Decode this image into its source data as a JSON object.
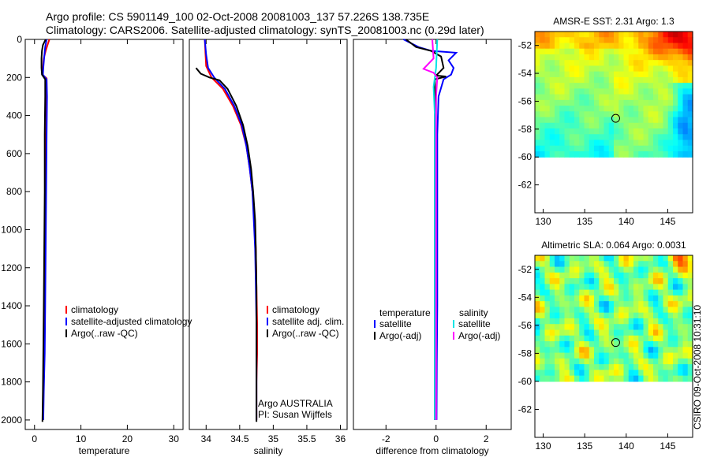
{
  "header": {
    "line1": "Argo profile: CS 5901149_100 02-Oct-2008 20081003_137 57.226S 138.735E",
    "line2": "Climatology: CARS2006. Satellite-adjusted climatology: synTS_20081003.nc (0.29d later)"
  },
  "colors": {
    "climatology": "#ff0000",
    "satellite": "#0000ff",
    "argo": "#000000",
    "satellite_salinity": "#00e5e5",
    "argo_adj_salinity": "#ff00ff"
  },
  "watermark": "CSIRO 09-Oct-2008 10:31:10",
  "chart_data": [
    {
      "type": "line",
      "id": "temperature",
      "xlabel": "temperature",
      "xlim": [
        -2,
        32
      ],
      "ylim": [
        2050,
        0
      ],
      "xticks": [
        0,
        10,
        20,
        30
      ],
      "yticks": [
        0,
        200,
        400,
        600,
        800,
        1000,
        1200,
        1400,
        1600,
        1800,
        2000
      ],
      "legend": {
        "position": "lower-left",
        "entries": [
          "climatology",
          "satellite-adjusted climatology",
          "Argo(..raw -QC)"
        ]
      },
      "series": [
        {
          "name": "climatology",
          "color": "#ff0000",
          "points": [
            [
              3.2,
              0
            ],
            [
              2.8,
              30
            ],
            [
              2.4,
              60
            ],
            [
              2.0,
              100
            ],
            [
              1.8,
              150
            ],
            [
              1.7,
              185
            ],
            [
              2.6,
              205
            ],
            [
              2.6,
              300
            ],
            [
              2.5,
              500
            ],
            [
              2.4,
              800
            ],
            [
              2.3,
              1100
            ],
            [
              2.2,
              1400
            ],
            [
              2.0,
              1650
            ],
            [
              1.9,
              1850
            ],
            [
              1.8,
              2000
            ]
          ]
        },
        {
          "name": "satellite-adjusted climatology",
          "color": "#0000ff",
          "points": [
            [
              2.6,
              0
            ],
            [
              2.3,
              40
            ],
            [
              2.1,
              90
            ],
            [
              1.9,
              150
            ],
            [
              1.8,
              185
            ],
            [
              2.6,
              210
            ],
            [
              2.7,
              300
            ],
            [
              2.6,
              500
            ],
            [
              2.5,
              800
            ],
            [
              2.4,
              1100
            ],
            [
              2.3,
              1400
            ],
            [
              2.2,
              1650
            ],
            [
              2.0,
              1850
            ],
            [
              1.9,
              2000
            ]
          ]
        },
        {
          "name": "Argo(..raw -QC)",
          "color": "#000000",
          "points": [
            [
              2.4,
              0
            ],
            [
              1.8,
              30
            ],
            [
              1.6,
              60
            ],
            [
              1.5,
              100
            ],
            [
              1.5,
              150
            ],
            [
              1.6,
              185
            ],
            [
              2.3,
              210
            ],
            [
              2.3,
              300
            ],
            [
              2.2,
              500
            ],
            [
              2.2,
              800
            ],
            [
              2.1,
              1100
            ],
            [
              2.0,
              1400
            ],
            [
              1.9,
              1650
            ],
            [
              1.8,
              1850
            ],
            [
              1.7,
              2010
            ]
          ]
        }
      ]
    },
    {
      "type": "line",
      "id": "salinity",
      "xlabel": "salinity",
      "xlim": [
        33.75,
        36.1
      ],
      "ylim": [
        2050,
        0
      ],
      "xticks": [
        34,
        34.5,
        35,
        35.5,
        36
      ],
      "legend": {
        "position": "lower-right",
        "entries": [
          "climatology",
          "satellite adj. clim.",
          "Argo(..raw -QC)"
        ]
      },
      "annotation": [
        "Argo AUSTRALIA",
        "PI: Susan Wijffels"
      ],
      "series": [
        {
          "name": "climatology",
          "color": "#ff0000",
          "points": [
            [
              33.98,
              0
            ],
            [
              33.99,
              70
            ],
            [
              34.0,
              140
            ],
            [
              34.08,
              200
            ],
            [
              34.25,
              260
            ],
            [
              34.4,
              350
            ],
            [
              34.52,
              450
            ],
            [
              34.6,
              560
            ],
            [
              34.65,
              680
            ],
            [
              34.69,
              800
            ],
            [
              34.72,
              950
            ],
            [
              34.74,
              1100
            ],
            [
              34.75,
              1300
            ],
            [
              34.76,
              1500
            ],
            [
              34.76,
              1650
            ],
            [
              34.75,
              1800
            ],
            [
              34.75,
              2000
            ]
          ]
        },
        {
          "name": "satellite adj. clim.",
          "color": "#0000ff",
          "points": [
            [
              33.98,
              0
            ],
            [
              34.0,
              80
            ],
            [
              34.03,
              150
            ],
            [
              34.12,
              200
            ],
            [
              34.28,
              260
            ],
            [
              34.42,
              350
            ],
            [
              34.53,
              450
            ],
            [
              34.6,
              560
            ],
            [
              34.65,
              680
            ],
            [
              34.69,
              800
            ],
            [
              34.71,
              950
            ],
            [
              34.73,
              1100
            ],
            [
              34.74,
              1300
            ],
            [
              34.75,
              1500
            ],
            [
              34.75,
              1800
            ],
            [
              34.75,
              2000
            ]
          ]
        },
        {
          "name": "Argo(..raw -QC)",
          "color": "#000000",
          "points": [
            [
              33.85,
              150
            ],
            [
              33.92,
              180
            ],
            [
              34.05,
              200
            ],
            [
              34.2,
              215
            ],
            [
              34.32,
              260
            ],
            [
              34.45,
              350
            ],
            [
              34.55,
              450
            ],
            [
              34.62,
              560
            ],
            [
              34.67,
              680
            ],
            [
              34.7,
              800
            ],
            [
              34.73,
              950
            ],
            [
              34.74,
              1100
            ],
            [
              34.75,
              1300
            ],
            [
              34.75,
              1500
            ],
            [
              34.75,
              1800
            ],
            [
              34.75,
              2010
            ]
          ]
        }
      ]
    },
    {
      "type": "line",
      "id": "difference",
      "xlabel": "difference from climatology",
      "xlim": [
        -3.3,
        3
      ],
      "ylim": [
        2050,
        0
      ],
      "xticks": [
        -2,
        0,
        2
      ],
      "legend": {
        "position": "lower-center",
        "temperature_title": "temperature",
        "salinity_title": "salinity",
        "entries": [
          "satellite",
          "Argo(-adj)",
          "satellite",
          "Argo(-adj)"
        ]
      },
      "series": [
        {
          "name": "temperature satellite",
          "color": "#0000ff",
          "points": [
            [
              -1.3,
              0
            ],
            [
              -0.7,
              40
            ],
            [
              -0.2,
              60
            ],
            [
              0.8,
              70
            ],
            [
              0.5,
              110
            ],
            [
              0.7,
              150
            ],
            [
              0.6,
              185
            ],
            [
              0.3,
              210
            ],
            [
              0.1,
              300
            ],
            [
              0.05,
              500
            ],
            [
              0.05,
              800
            ],
            [
              0.05,
              1100
            ],
            [
              0.05,
              1400
            ],
            [
              0.03,
              1700
            ],
            [
              0.02,
              2000
            ]
          ]
        },
        {
          "name": "temperature Argo(-adj)",
          "color": "#000000",
          "points": [
            [
              -1.2,
              0
            ],
            [
              -0.8,
              40
            ],
            [
              -0.2,
              60
            ],
            [
              0.2,
              90
            ],
            [
              0.3,
              150
            ],
            [
              0.0,
              190
            ],
            [
              0.4,
              195
            ],
            [
              -0.05,
              210
            ],
            [
              -0.05,
              300
            ],
            [
              -0.05,
              500
            ],
            [
              -0.05,
              800
            ],
            [
              -0.05,
              1100
            ],
            [
              -0.05,
              1400
            ],
            [
              -0.05,
              1700
            ],
            [
              -0.05,
              2000
            ]
          ]
        },
        {
          "name": "salinity satellite",
          "color": "#00e5e5",
          "points": [
            [
              0.05,
              0
            ],
            [
              0.0,
              150
            ],
            [
              -0.1,
              250
            ],
            [
              -0.05,
              400
            ],
            [
              -0.05,
              600
            ],
            [
              -0.05,
              800
            ],
            [
              -0.05,
              1000
            ],
            [
              -0.05,
              1200
            ],
            [
              -0.05,
              1400
            ],
            [
              -0.05,
              1600
            ],
            [
              -0.05,
              1800
            ],
            [
              -0.05,
              2000
            ]
          ]
        },
        {
          "name": "salinity Argo(-adj)",
          "color": "#ff00ff",
          "points": [
            [
              -0.15,
              0
            ],
            [
              -0.1,
              100
            ],
            [
              -0.5,
              155
            ],
            [
              -0.1,
              175
            ],
            [
              0.05,
              200
            ],
            [
              0.0,
              300
            ],
            [
              0.0,
              500
            ],
            [
              0.0,
              800
            ],
            [
              0.0,
              1100
            ],
            [
              0.0,
              1400
            ],
            [
              0.0,
              1700
            ],
            [
              0.0,
              2000
            ]
          ]
        }
      ]
    },
    {
      "type": "heatmap",
      "id": "sst-map",
      "title": "AMSR-E SST: 2.31  Argo: 1.3",
      "xlim": [
        129,
        148
      ],
      "ylim": [
        -64,
        -51
      ],
      "data_ylim": [
        -60,
        -51
      ],
      "xticks": [
        130,
        135,
        140,
        145
      ],
      "yticks": [
        -52,
        -54,
        -56,
        -58,
        -60,
        -62
      ],
      "profile_location": [
        138.735,
        -57.226
      ]
    },
    {
      "type": "heatmap",
      "id": "sla-map",
      "title": "Altimetric SLA: 0.064  Argo: 0.0031",
      "xlim": [
        129,
        148
      ],
      "ylim": [
        -64,
        -51
      ],
      "data_ylim": [
        -60,
        -51
      ],
      "xticks": [
        130,
        135,
        140,
        145
      ],
      "yticks": [
        -52,
        -54,
        -56,
        -58,
        -60,
        -62
      ],
      "profile_location": [
        138.735,
        -57.226
      ]
    }
  ]
}
